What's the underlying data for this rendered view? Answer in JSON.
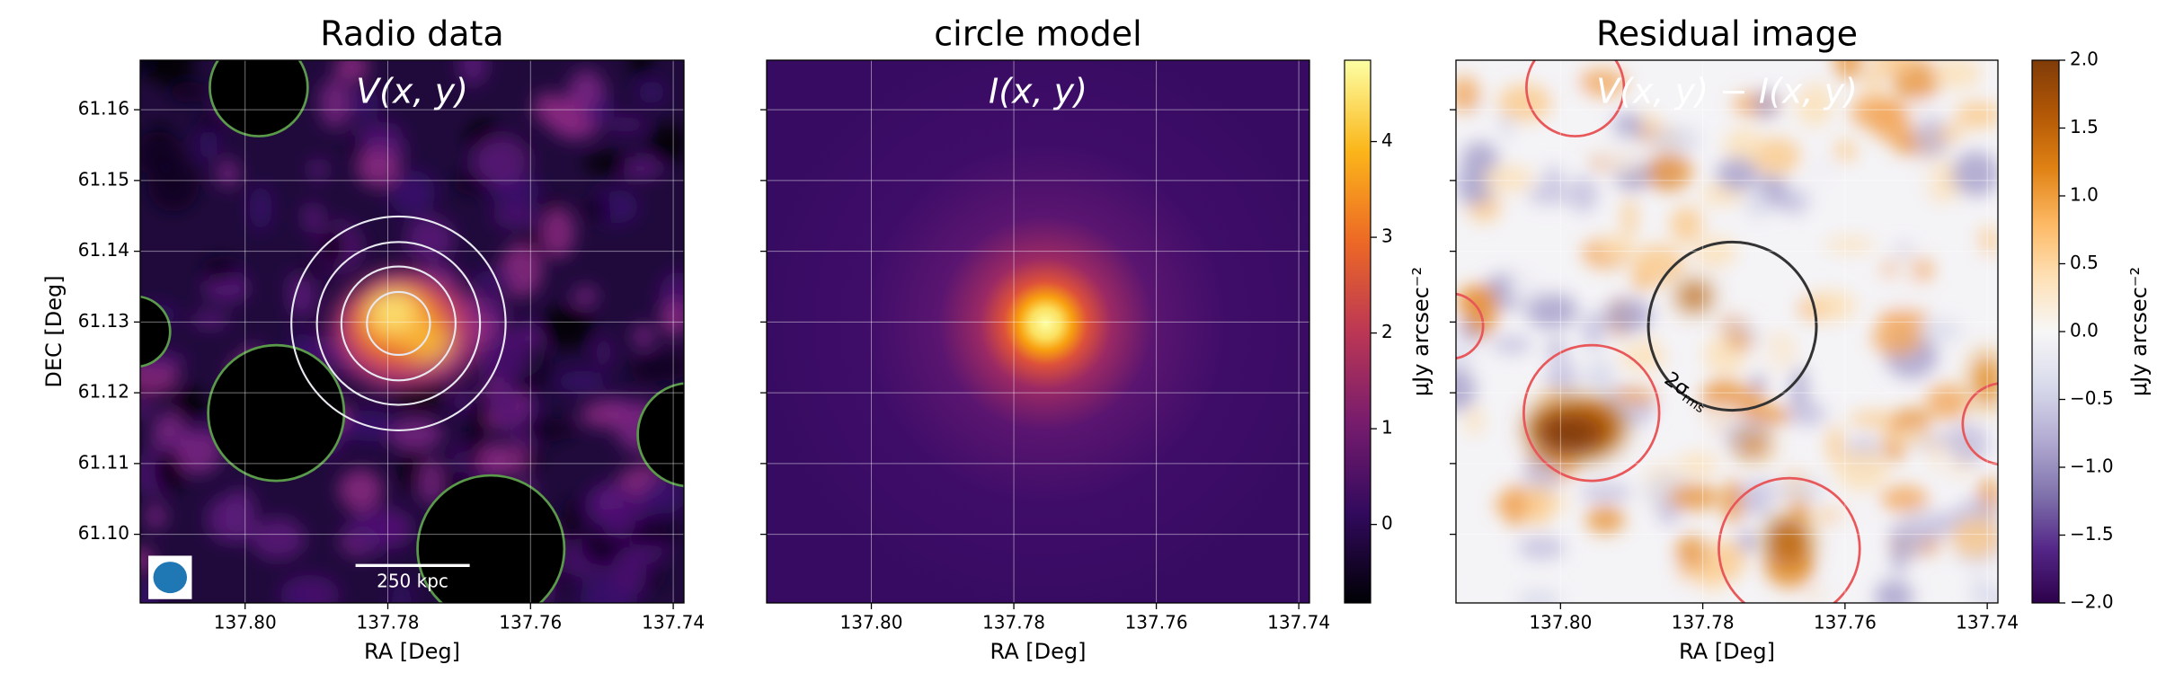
{
  "chart_data": [
    {
      "type": "image",
      "title": "Radio data",
      "annotation": "V(x, y)",
      "scale_bar": "250 kpc",
      "xlabel": "RA [Deg]",
      "ylabel": "DEC [Deg]",
      "xlim": [
        137.8147,
        137.7385
      ],
      "xticks": [
        {
          "value": 137.8,
          "label": "137.80"
        },
        {
          "value": 137.78,
          "label": "137.78"
        },
        {
          "value": 137.76,
          "label": "137.76"
        },
        {
          "value": 137.74,
          "label": "137.74"
        }
      ],
      "ylim": [
        61.0903,
        61.167
      ],
      "yticks": [
        {
          "value": 61.1,
          "label": "61.10"
        },
        61.11,
        61.12,
        61.13,
        61.14,
        61.15,
        61.16
      ],
      "grid": true
    },
    {
      "type": "image",
      "title": "circle model",
      "annotation": "I(x, y)",
      "xlabel": "RA [Deg]",
      "xlim": [
        137.8147,
        137.7385
      ],
      "xticks": [
        {
          "value": 137.8,
          "label": "137.80"
        },
        {
          "value": 137.78,
          "label": "137.78"
        },
        {
          "value": 137.76,
          "label": "137.76"
        },
        {
          "value": 137.74,
          "label": "137.74"
        }
      ],
      "ylim": [
        61.0903,
        61.167
      ],
      "yticks": [
        61.1,
        61.11,
        61.12,
        61.13,
        61.14,
        61.15,
        61.16
      ],
      "grid": true,
      "colorbar": {
        "label": "μJy arcsec⁻²",
        "lim": [
          -0.82,
          4.85
        ],
        "ticks": [
          0,
          1,
          2,
          3,
          4
        ],
        "colors": [
          "#000004",
          "#320a5e",
          "#781c6d",
          "#bc3754",
          "#ed6925",
          "#fbb61a",
          "#fcffa4"
        ]
      }
    },
    {
      "type": "image",
      "title": "Residual image",
      "annotation": "V(x, y) − I(x, y)",
      "circle_label": {
        "main": "2σ",
        "sub": "rms"
      },
      "xlabel": "RA [Deg]",
      "xlim": [
        137.8147,
        137.7385
      ],
      "xticks": [
        {
          "value": 137.8,
          "label": "137.80"
        },
        {
          "value": 137.78,
          "label": "137.78"
        },
        {
          "value": 137.76,
          "label": "137.76"
        },
        {
          "value": 137.74,
          "label": "137.74"
        }
      ],
      "ylim": [
        61.0903,
        61.167
      ],
      "yticks": [
        61.1,
        61.11,
        61.12,
        61.13,
        61.14,
        61.15,
        61.16
      ],
      "grid": true,
      "colorbar": {
        "label": "μJy arcsec⁻²",
        "lim": [
          -2,
          2
        ],
        "ticks": [
          {
            "value": -2,
            "label": "−2.0"
          },
          {
            "value": -1.5,
            "label": "−1.5"
          },
          {
            "value": -1,
            "label": "−1.0"
          },
          {
            "value": -0.5,
            "label": "−0.5"
          },
          {
            "value": 0,
            "label": "0.0"
          },
          {
            "value": 0.5,
            "label": "0.5"
          },
          {
            "value": 1,
            "label": "1.0"
          },
          {
            "value": 1.5,
            "label": "1.5"
          },
          {
            "value": 2,
            "label": "2.0"
          }
        ],
        "colors": [
          "#2d004b",
          "#542788",
          "#8073ac",
          "#b2abd2",
          "#d8daeb",
          "#f7f7f7",
          "#fee0b6",
          "#fdb863",
          "#e08214",
          "#b35806",
          "#7f3b08"
        ]
      }
    }
  ]
}
